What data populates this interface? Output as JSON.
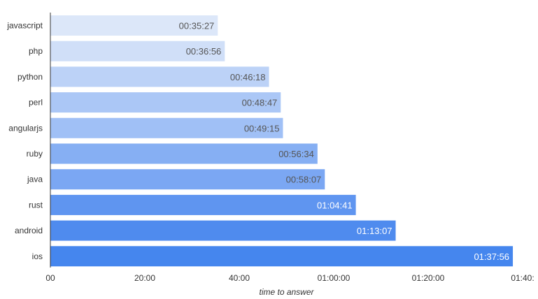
{
  "chart_data": {
    "type": "bar",
    "orientation": "horizontal",
    "xlabel": "time to answer",
    "ylabel": "",
    "xlim_seconds": [
      0,
      6000
    ],
    "x_ticks": [
      {
        "value": 0,
        "label": "00"
      },
      {
        "value": 1200,
        "label": "20:00"
      },
      {
        "value": 2400,
        "label": "40:00"
      },
      {
        "value": 3600,
        "label": "01:00:00"
      },
      {
        "value": 4800,
        "label": "01:20:00"
      },
      {
        "value": 6000,
        "label": "01:40:"
      }
    ],
    "categories": [
      "javascript",
      "php",
      "python",
      "perl",
      "angularjs",
      "ruby",
      "java",
      "rust",
      "android",
      "ios"
    ],
    "values_seconds": [
      2127,
      2216,
      2778,
      2927,
      2955,
      3394,
      3487,
      3881,
      4387,
      5876
    ],
    "data_labels": [
      "00:35:27",
      "00:36:56",
      "00:46:18",
      "00:48:47",
      "00:49:15",
      "00:56:34",
      "00:58:07",
      "01:04:41",
      "01:13:07",
      "01:37:56"
    ],
    "bar_colors": [
      "#dce7f9",
      "#d0dff8",
      "#bcd2f7",
      "#abc7f6",
      "#a0c0f6",
      "#86aff3",
      "#7ba7f3",
      "#5f95f0",
      "#4f8bee",
      "#4586ee"
    ],
    "label_colors": [
      "#555555",
      "#555555",
      "#555555",
      "#555555",
      "#555555",
      "#555555",
      "#555555",
      "#ffffff",
      "#ffffff",
      "#ffffff"
    ],
    "grid": false,
    "legend": "none"
  }
}
